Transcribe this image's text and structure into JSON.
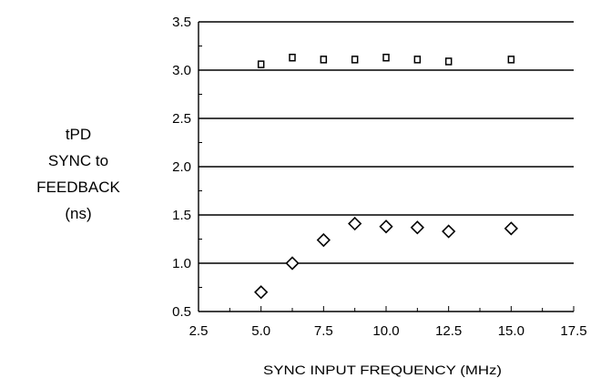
{
  "chart_data": {
    "type": "scatter",
    "title": "",
    "xlabel": "SYNC INPUT FREQUENCY (MHz)",
    "ylabel_lines": [
      "tPD",
      "SYNC to",
      "FEEDBACK",
      "(ns)"
    ],
    "xlim": [
      2.5,
      17.5
    ],
    "ylim": [
      0.5,
      3.5
    ],
    "x_ticks": [
      "2.5",
      "5.0",
      "7.5",
      "10.0",
      "12.5",
      "15.0",
      "17.5"
    ],
    "y_ticks": [
      "0.5",
      "1.0",
      "1.5",
      "2.0",
      "2.5",
      "3.0",
      "3.5"
    ],
    "grid": "horizontal",
    "legend": "none",
    "series": [
      {
        "marker": "square",
        "points": [
          {
            "x": 5.0,
            "y": 3.06
          },
          {
            "x": 6.25,
            "y": 3.13
          },
          {
            "x": 7.5,
            "y": 3.11
          },
          {
            "x": 8.75,
            "y": 3.11
          },
          {
            "x": 10.0,
            "y": 3.13
          },
          {
            "x": 11.25,
            "y": 3.11
          },
          {
            "x": 12.5,
            "y": 3.09
          },
          {
            "x": 15.0,
            "y": 3.11
          }
        ]
      },
      {
        "marker": "diamond",
        "points": [
          {
            "x": 5.0,
            "y": 0.7
          },
          {
            "x": 6.25,
            "y": 1.0
          },
          {
            "x": 7.5,
            "y": 1.24
          },
          {
            "x": 8.75,
            "y": 1.41
          },
          {
            "x": 10.0,
            "y": 1.38
          },
          {
            "x": 11.25,
            "y": 1.37
          },
          {
            "x": 12.5,
            "y": 1.33
          },
          {
            "x": 15.0,
            "y": 1.36
          }
        ]
      }
    ]
  }
}
